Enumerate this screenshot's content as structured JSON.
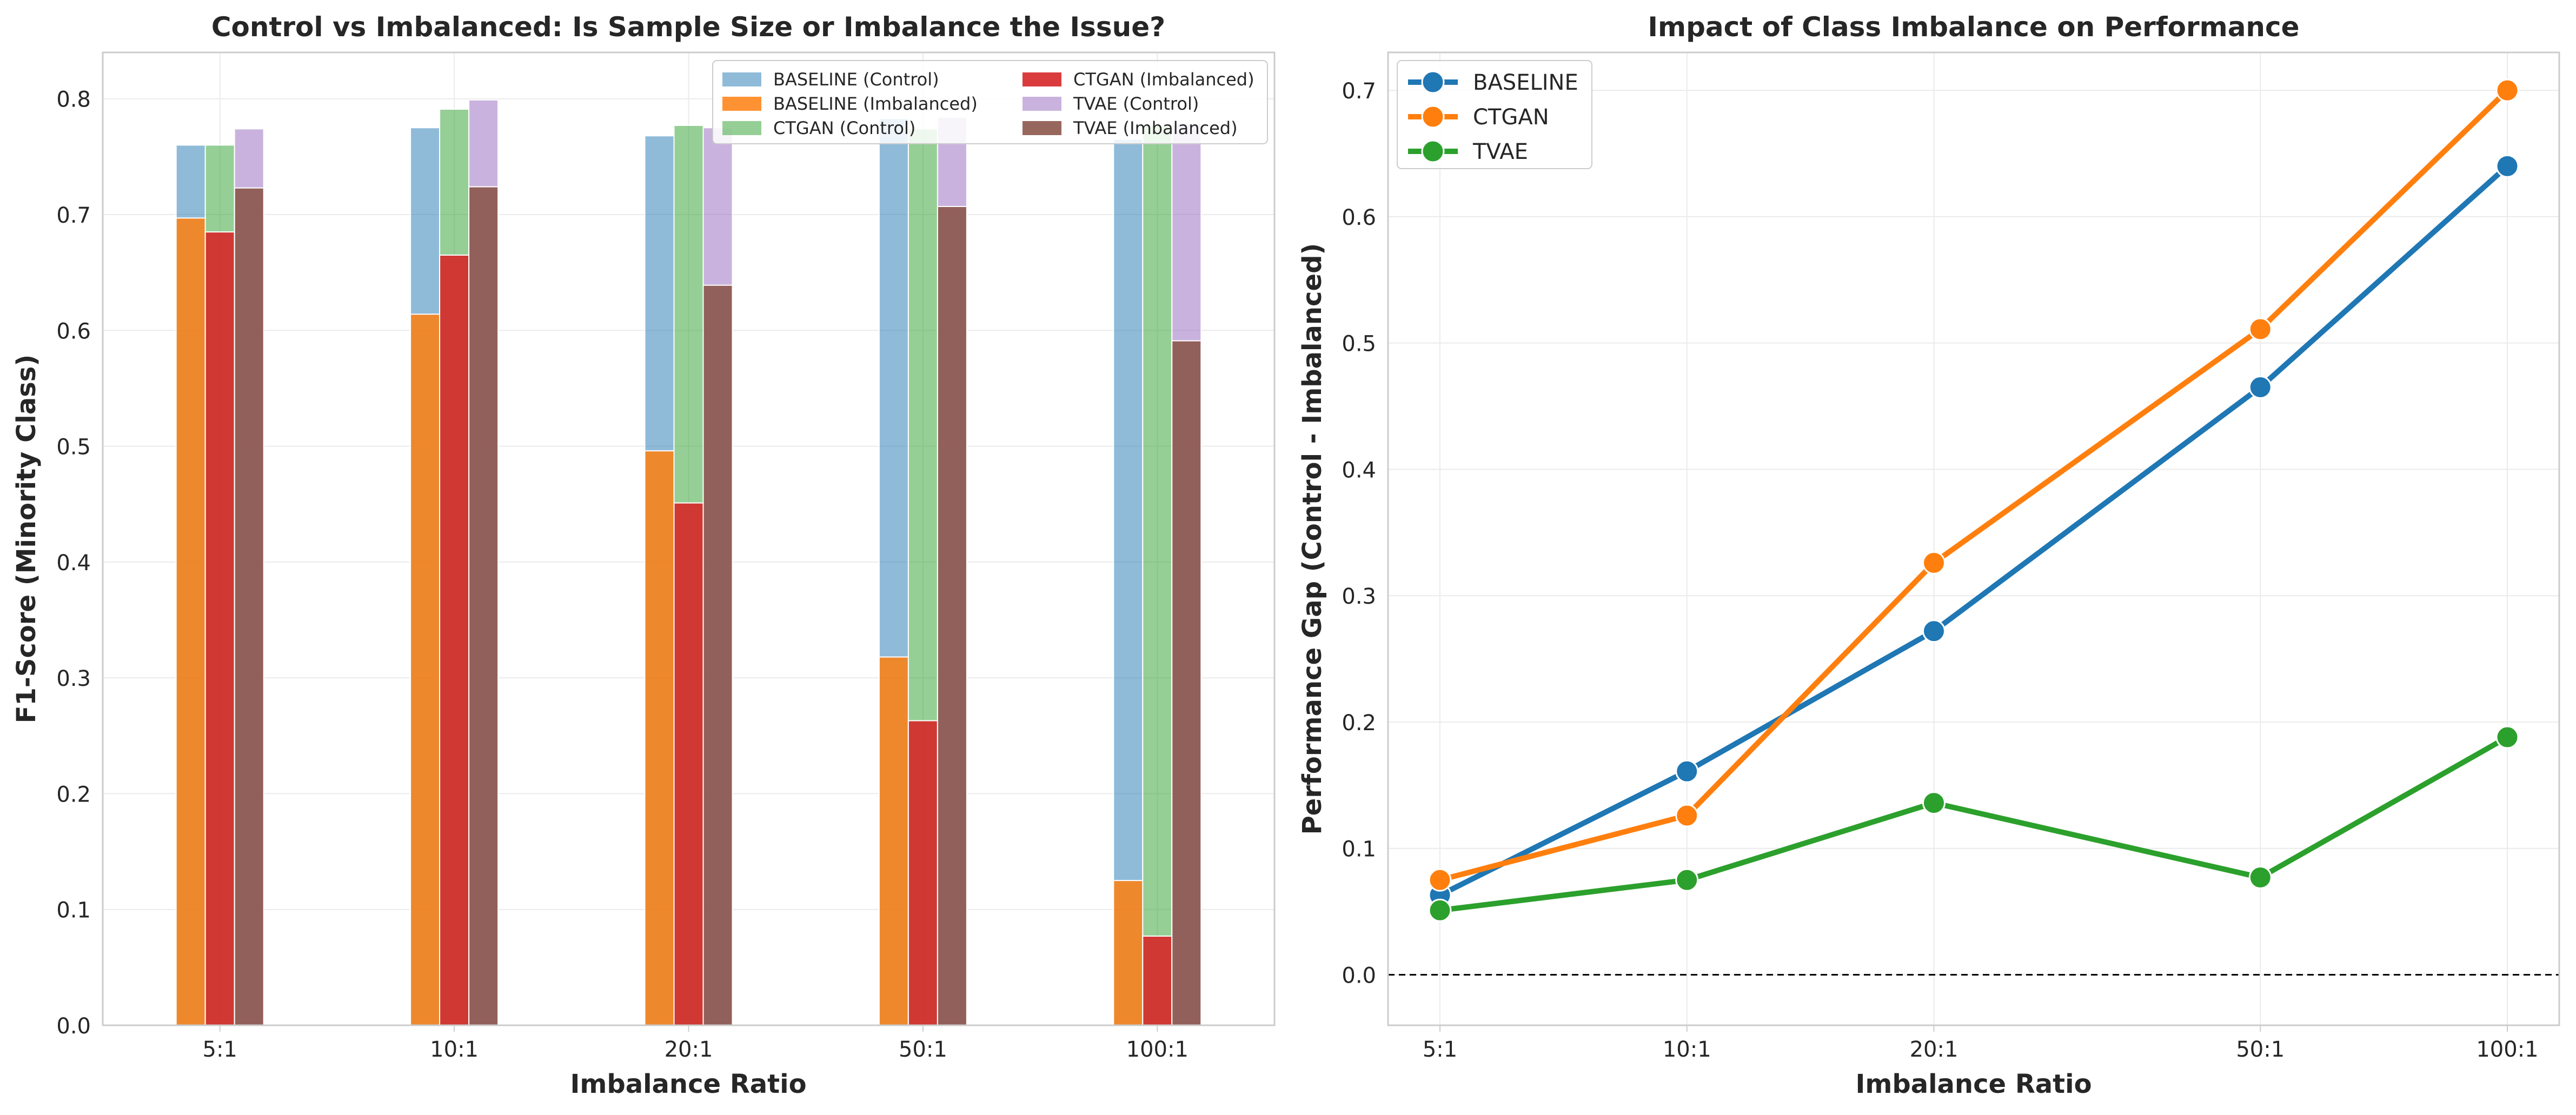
{
  "chart_data": [
    {
      "type": "bar",
      "title": "Control vs Imbalanced: Is Sample Size or Imbalance the Issue?",
      "xlabel": "Imbalance Ratio",
      "ylabel": "F1-Score (Minority Class)",
      "ylim": [
        0,
        0.84
      ],
      "yticks": [
        "0.0",
        "0.1",
        "0.2",
        "0.3",
        "0.4",
        "0.5",
        "0.6",
        "0.7",
        "0.8"
      ],
      "grid": true,
      "legend_placement": "top-right",
      "categories": [
        "5:1",
        "10:1",
        "20:1",
        "50:1",
        "100:1"
      ],
      "series": [
        {
          "name": "BASELINE (Control)",
          "color": "#1f77b4",
          "opacity": 0.5,
          "method": "BASELINE",
          "values": [
            0.76,
            0.775,
            0.768,
            0.783,
            0.765
          ]
        },
        {
          "name": "BASELINE (Imbalanced)",
          "color": "#ff7f0e",
          "opacity": 0.85,
          "method": "BASELINE",
          "values": [
            0.697,
            0.614,
            0.496,
            0.318,
            0.125
          ]
        },
        {
          "name": "CTGAN (Control)",
          "color": "#2ca02c",
          "opacity": 0.5,
          "method": "CTGAN",
          "values": [
            0.76,
            0.791,
            0.777,
            0.774,
            0.777
          ]
        },
        {
          "name": "CTGAN (Imbalanced)",
          "color": "#d62728",
          "opacity": 0.9,
          "method": "CTGAN",
          "values": [
            0.685,
            0.665,
            0.451,
            0.263,
            0.077
          ]
        },
        {
          "name": "TVAE (Control)",
          "color": "#9467bd",
          "opacity": 0.5,
          "method": "TVAE",
          "values": [
            0.774,
            0.799,
            0.775,
            0.784,
            0.779
          ]
        },
        {
          "name": "TVAE (Imbalanced)",
          "color": "#8c564b",
          "opacity": 0.9,
          "method": "TVAE",
          "values": [
            0.723,
            0.724,
            0.639,
            0.707,
            0.591
          ]
        }
      ]
    },
    {
      "type": "line",
      "title": "Impact of Class Imbalance on Performance",
      "xlabel": "Imbalance Ratio",
      "ylabel": "Performance Gap (Control - Imbalanced)",
      "x": [
        5,
        10,
        20,
        50,
        100
      ],
      "xscale": "log",
      "xticklabels": [
        "5:1",
        "10:1",
        "20:1",
        "50:1",
        "100:1"
      ],
      "ylim": [
        -0.04,
        0.73
      ],
      "yticks": [
        "0.0",
        "0.1",
        "0.2",
        "0.3",
        "0.4",
        "0.5",
        "0.6",
        "0.7"
      ],
      "reference_line": 0.0,
      "grid": true,
      "legend_placement": "top-left",
      "series": [
        {
          "name": "BASELINE",
          "color": "#1f77b4",
          "values": [
            0.063,
            0.161,
            0.272,
            0.465,
            0.64
          ]
        },
        {
          "name": "CTGAN",
          "color": "#ff7f0e",
          "values": [
            0.075,
            0.126,
            0.326,
            0.511,
            0.7
          ]
        },
        {
          "name": "TVAE",
          "color": "#2ca02c",
          "values": [
            0.051,
            0.075,
            0.136,
            0.077,
            0.188
          ]
        }
      ]
    }
  ]
}
